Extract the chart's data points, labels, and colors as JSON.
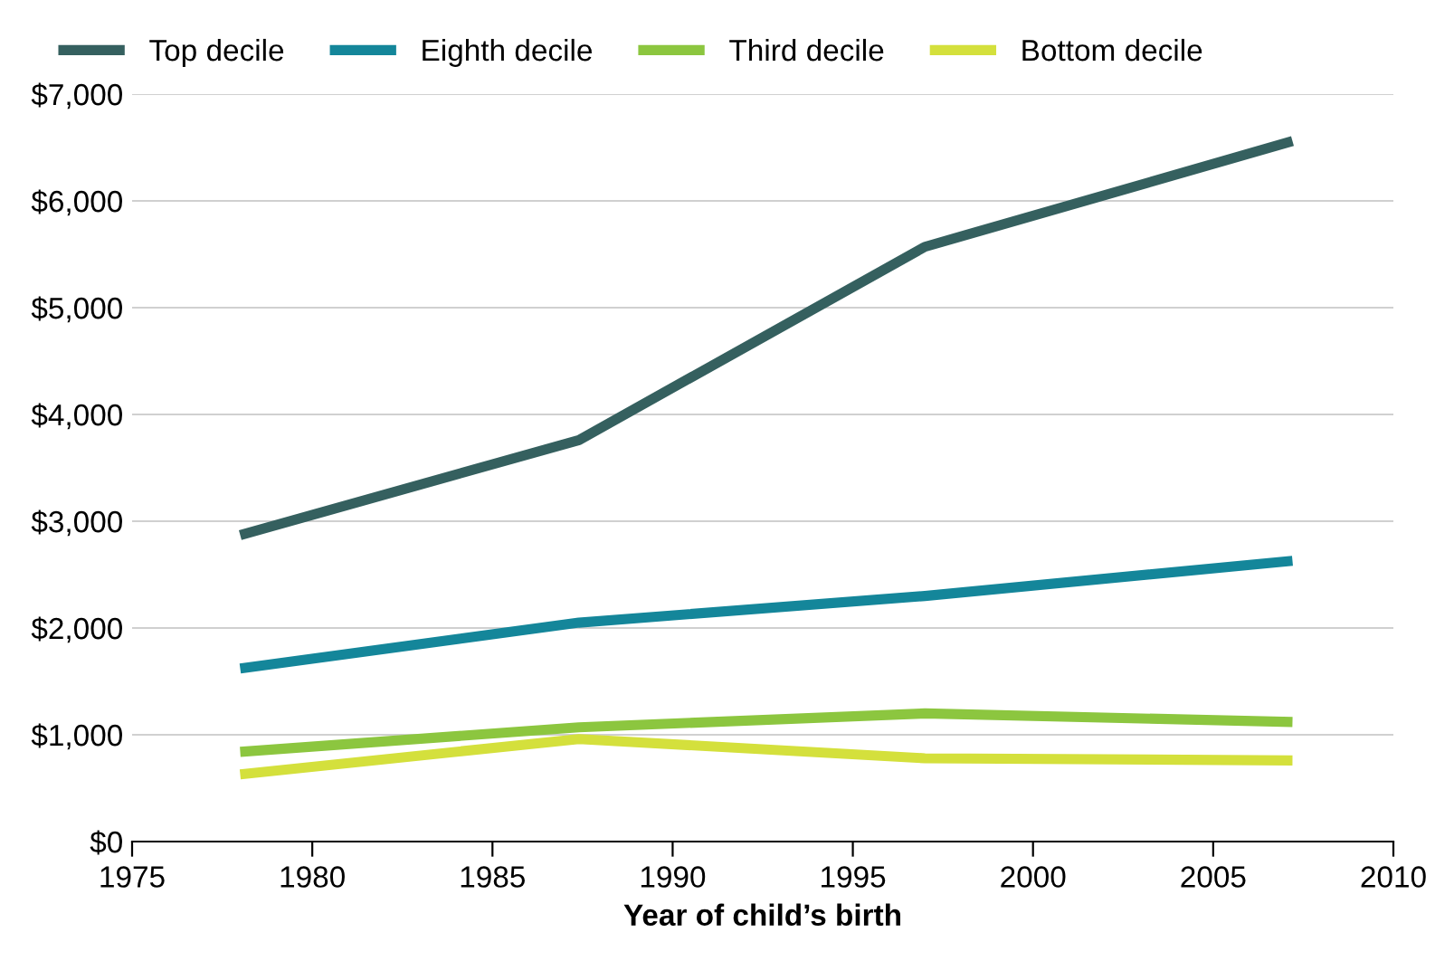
{
  "chart_data": {
    "type": "line",
    "xlabel": "Year of child’s birth",
    "x": [
      1978,
      1987.4,
      1997,
      2007.2
    ],
    "series": [
      {
        "name": "Top decile",
        "color": "#35605f",
        "values": [
          2870,
          3760,
          5570,
          6560
        ]
      },
      {
        "name": "Eighth decile",
        "color": "#14869a",
        "values": [
          1620,
          2050,
          2300,
          2630
        ]
      },
      {
        "name": "Third decile",
        "color": "#8cc63f",
        "values": [
          840,
          1070,
          1200,
          1120
        ]
      },
      {
        "name": "Bottom decile",
        "color": "#d4e03c",
        "values": [
          630,
          960,
          780,
          760
        ]
      }
    ],
    "xlim": [
      1975,
      2010
    ],
    "xticks": [
      1975,
      1980,
      1985,
      1990,
      1995,
      2000,
      2005,
      2010
    ],
    "ylim": [
      0,
      7000
    ],
    "yticks": [
      {
        "value": 0,
        "label": "$0"
      },
      {
        "value": 1000,
        "label": "$1,000"
      },
      {
        "value": 2000,
        "label": "$2,000"
      },
      {
        "value": 3000,
        "label": "$3,000"
      },
      {
        "value": 4000,
        "label": "$4,000"
      },
      {
        "value": 5000,
        "label": "$5,000"
      },
      {
        "value": 6000,
        "label": "$6,000"
      },
      {
        "value": 7000,
        "label": "$7,000"
      }
    ],
    "grid": "y",
    "legend": "top",
    "marker": "none",
    "line_style": "solid"
  }
}
